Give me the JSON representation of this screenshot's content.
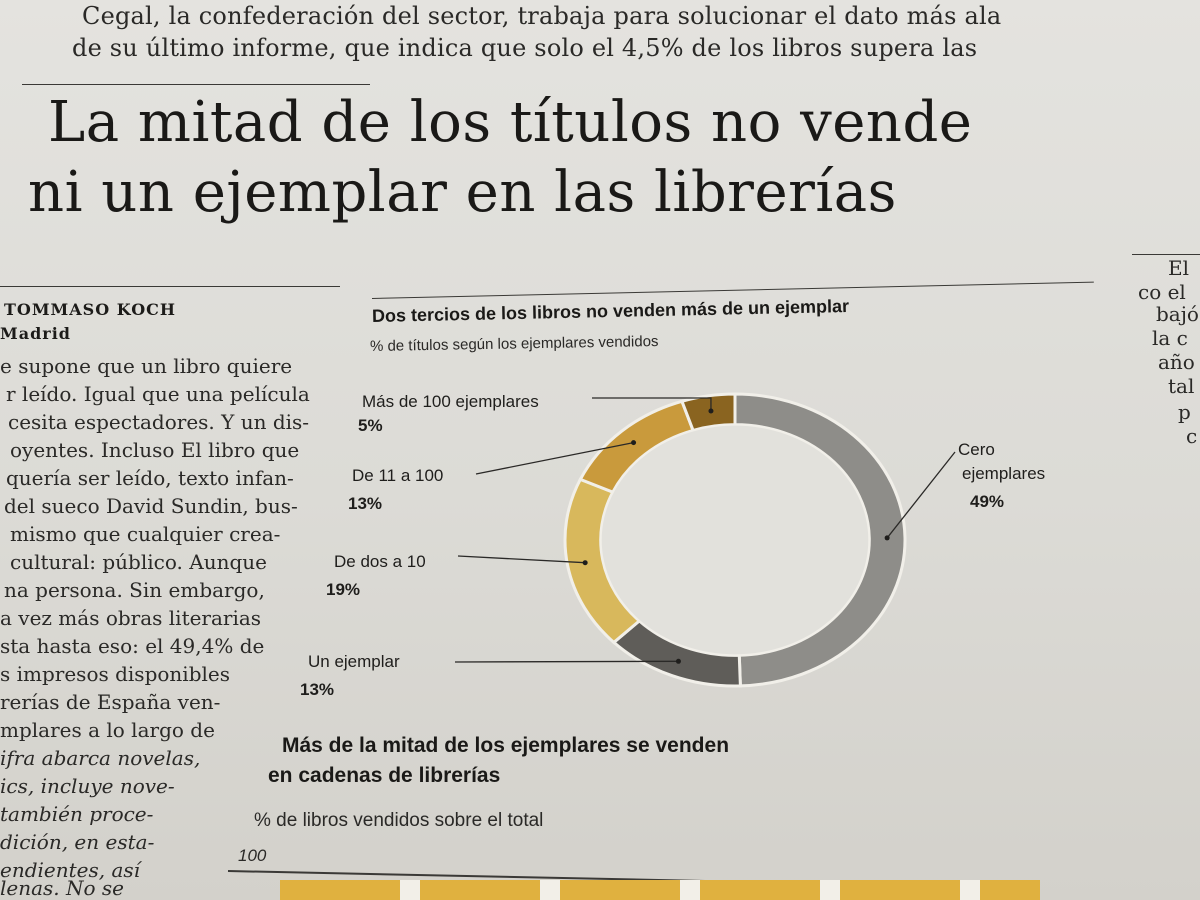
{
  "article": {
    "lead_lines": [
      "Cegal, la confederación del sector, trabaja para solucionar el dato más ala",
      "de su último informe, que indica que solo el 4,5% de los libros supera las"
    ],
    "headline_lines": [
      "La mitad de los títulos no vende",
      "ni un ejemplar en las librerías"
    ],
    "author": "TOMMASO KOCH",
    "location": "Madrid",
    "body_lines": [
      "e supone que un libro quiere",
      "r leído. Igual que una película",
      "cesita espectadores. Y un dis-",
      "oyentes. Incluso El libro que",
      "quería ser leído, texto infan-",
      "del sueco David Sundin, bus-",
      "mismo que cualquier crea-",
      "cultural: público. Aunque",
      "na persona. Sin embargo,",
      "a vez más obras literarias",
      "sta hasta eso: el 49,4% de",
      "s impresos disponibles",
      "rerías de España ven-",
      "mplares a lo largo de",
      "ifra abarca novelas,",
      "ics, incluye nove-",
      "también proce-",
      "dición, en esta-",
      "endientes, así",
      "lenas. No se"
    ],
    "right_column_lines": [
      "El",
      "co el",
      "bajó",
      "la c",
      "año",
      "tal",
      "p",
      "c"
    ]
  },
  "chart_data": [
    {
      "type": "pie",
      "title": "Dos tercios de los libros no venden más de un ejemplar",
      "subtitle": "% de títulos según los ejemplares vendidos",
      "categories": [
        "Cero ejemplares",
        "Un ejemplar",
        "De dos a 10",
        "De 11 a 100",
        "Más de 100 ejemplares"
      ],
      "values": [
        49,
        13,
        19,
        13,
        5
      ],
      "value_labels": [
        "49%",
        "13%",
        "19%",
        "13%",
        "5%"
      ],
      "label_lines": [
        [
          "Cero",
          "ejemplares"
        ],
        [
          "Un ejemplar"
        ],
        [
          "De dos a 10"
        ],
        [
          "De 11 a 100"
        ],
        [
          "Más de 100 ejemplares"
        ]
      ],
      "colors": [
        "#8e8d89",
        "#5f5d59",
        "#d8b85c",
        "#c99a3c",
        "#8a6420"
      ],
      "donut": true
    },
    {
      "type": "bar",
      "title_lines": [
        "Más de la mitad de los ejemplares se venden",
        "en cadenas de librerías"
      ],
      "subtitle": "% de libros vendidos sobre el total",
      "y_ticks": [
        "100"
      ]
    }
  ]
}
